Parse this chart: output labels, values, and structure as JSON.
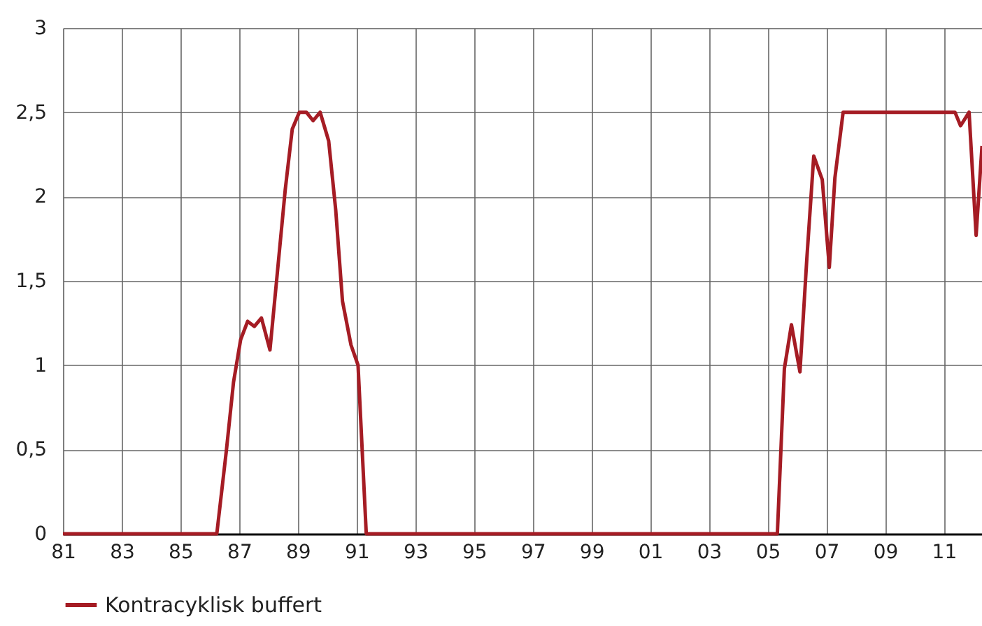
{
  "chart_data": {
    "type": "line",
    "x": [
      1981,
      1986.24,
      1986.57,
      1986.81,
      1987.05,
      1987.29,
      1987.52,
      1987.76,
      1988.05,
      1988.33,
      1988.57,
      1988.81,
      1989.05,
      1989.29,
      1989.52,
      1989.76,
      1990.05,
      1990.29,
      1990.52,
      1990.81,
      1991.05,
      1991.33,
      2005.33,
      2005.57,
      2005.81,
      2006.1,
      2006.33,
      2006.57,
      2006.86,
      2007.1,
      2007.29,
      2007.57,
      2011.38,
      2011.57,
      2011.86,
      2012.1,
      2012.3
    ],
    "series": [
      {
        "name": "Kontracyklisk buffert",
        "color": "#a51c24",
        "values": [
          0,
          0,
          0.5,
          0.9,
          1.15,
          1.26,
          1.23,
          1.28,
          1.09,
          1.6,
          2.04,
          2.4,
          2.5,
          2.5,
          2.45,
          2.5,
          2.33,
          1.92,
          1.38,
          1.12,
          1.0,
          0,
          0,
          0.98,
          1.24,
          0.96,
          1.62,
          2.24,
          2.1,
          1.58,
          2.11,
          2.5,
          2.5,
          2.42,
          2.5,
          1.77,
          2.3
        ]
      }
    ],
    "xlim": [
      1981,
      2012.3
    ],
    "xticks": [
      {
        "value": 1981,
        "label": "81"
      },
      {
        "value": 1983,
        "label": "83"
      },
      {
        "value": 1985,
        "label": "85"
      },
      {
        "value": 1987,
        "label": "87"
      },
      {
        "value": 1989,
        "label": "89"
      },
      {
        "value": 1991,
        "label": "91"
      },
      {
        "value": 1993,
        "label": "93"
      },
      {
        "value": 1995,
        "label": "95"
      },
      {
        "value": 1997,
        "label": "97"
      },
      {
        "value": 1999,
        "label": "99"
      },
      {
        "value": 2001,
        "label": "01"
      },
      {
        "value": 2003,
        "label": "03"
      },
      {
        "value": 2005,
        "label": "05"
      },
      {
        "value": 2007,
        "label": "07"
      },
      {
        "value": 2009,
        "label": "09"
      },
      {
        "value": 2011,
        "label": "11"
      }
    ],
    "ylim": [
      0,
      3
    ],
    "yticks": [
      0,
      {
        "value": 0.5,
        "label": "0,5"
      },
      1,
      {
        "value": 1.5,
        "label": "1,5"
      },
      2,
      {
        "value": 2.5,
        "label": "2,5"
      },
      3
    ],
    "grid": true,
    "legend": "bottom left",
    "line_style": "solid",
    "marker": "none"
  }
}
